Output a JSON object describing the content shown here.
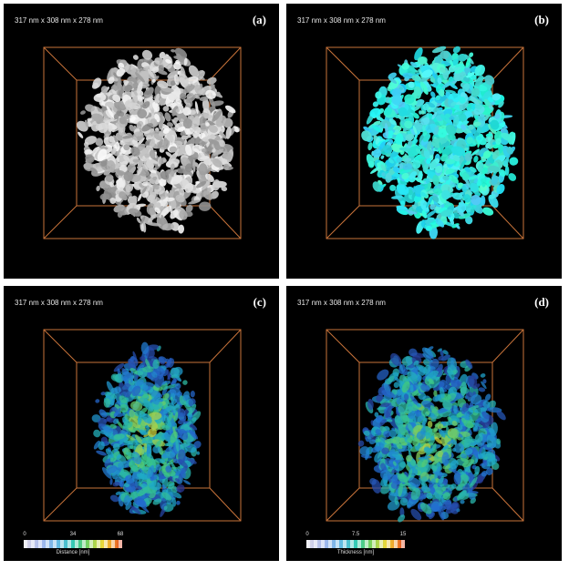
{
  "panels": [
    {
      "id": "a",
      "label": "(a)",
      "dimensions": "317 nm x 308 nm x 278 nm",
      "render": "gray-isosurface"
    },
    {
      "id": "b",
      "label": "(b)",
      "dimensions": "317 nm x 308 nm x 278 nm",
      "render": "cyan-isosurface"
    },
    {
      "id": "c",
      "label": "(c)",
      "dimensions": "317 nm x 308 nm x 278 nm",
      "render": "distance-colormap",
      "colorbar": {
        "ticks": [
          "0",
          "34",
          "68"
        ],
        "title": "Distance [nm]"
      }
    },
    {
      "id": "d",
      "label": "(d)",
      "dimensions": "317 nm x 308 nm x 278 nm",
      "render": "thickness-colormap",
      "colorbar": {
        "ticks": [
          "0",
          "7.5",
          "15"
        ],
        "title": "Thickness [nm]"
      }
    }
  ],
  "colors": {
    "background": "#000000",
    "box_edges": "#c8733a",
    "gray_surface": "#c9c9c9",
    "cyan_surface": "#36e6e0",
    "text": "#e8e8e8"
  }
}
